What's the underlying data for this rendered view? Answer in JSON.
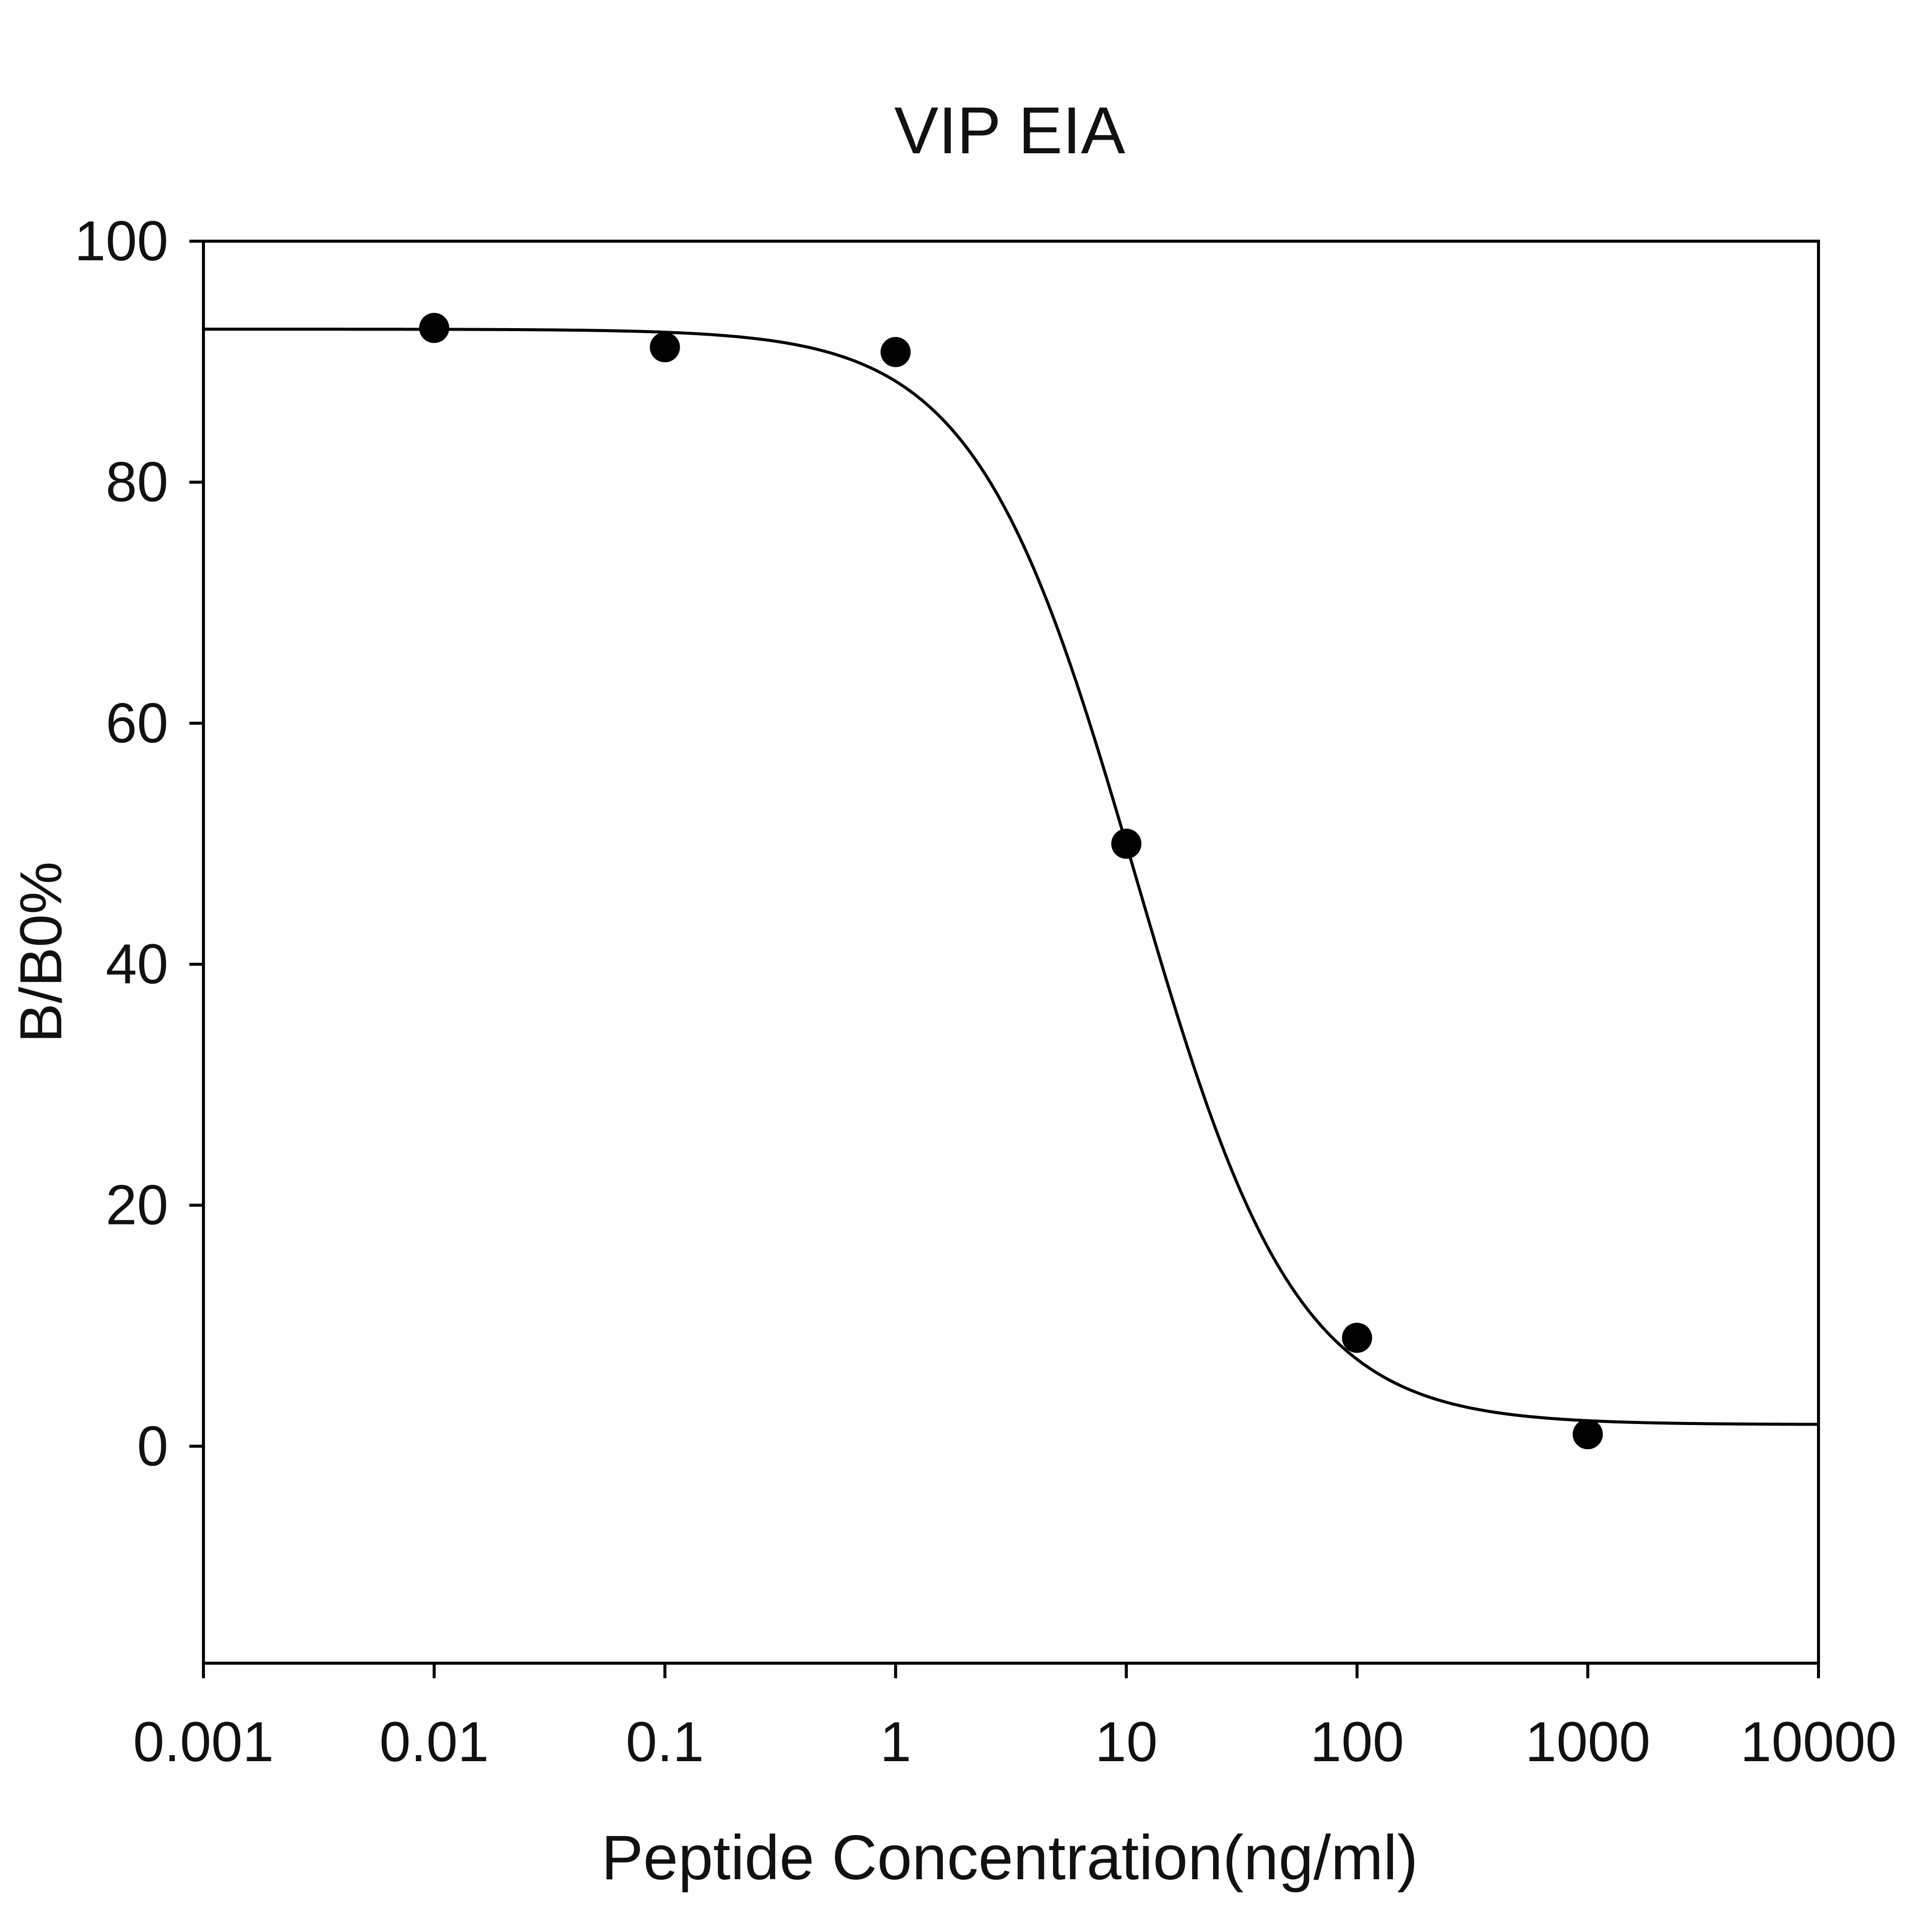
{
  "chart_data": {
    "type": "scatter",
    "title": "VIP EIA",
    "xlabel": "Peptide Concentration(ng/ml)",
    "ylabel": "B/B0%",
    "x_scale": "log",
    "xlim": [
      0.001,
      10000
    ],
    "ylim": [
      -18,
      100
    ],
    "x_ticks": [
      0.001,
      0.01,
      0.1,
      1,
      10,
      100,
      1000,
      10000
    ],
    "x_tick_labels": [
      "0.001",
      "0.01",
      "0.1",
      "1",
      "10",
      "100",
      "1000",
      "10000"
    ],
    "y_ticks": [
      0,
      20,
      40,
      60,
      80,
      100
    ],
    "y_tick_labels": [
      "0",
      "20",
      "40",
      "60",
      "80",
      "100"
    ],
    "grid": false,
    "series": [
      {
        "kind": "points",
        "x": [
          0.01,
          0.1,
          1,
          10,
          100,
          1000
        ],
        "y": [
          92.8,
          91.2,
          90.8,
          50,
          9,
          1
        ]
      },
      {
        "kind": "fitted-curve",
        "model": "four-parameter logistic",
        "top": 92.7,
        "bottom": 1.8,
        "ec50": 11,
        "hill": 1.25
      }
    ],
    "colors": {
      "points": "#000000",
      "curve": "#000000",
      "axes": "#000000"
    }
  }
}
